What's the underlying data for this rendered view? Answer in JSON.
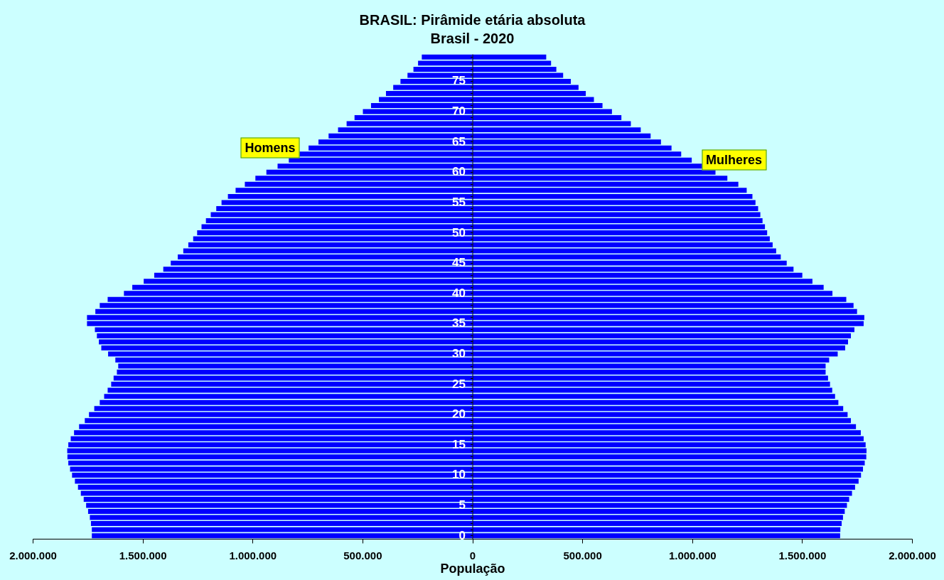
{
  "chart_data": {
    "type": "bar",
    "orientation": "horizontal",
    "stacked": true,
    "title": "BRASIL: Pirâmide etária absoluta",
    "subtitle": "Brasil - 2020",
    "xlabel": "População",
    "legend": false,
    "grid": false,
    "categories": [
      null,
      null,
      null,
      null,
      "75",
      null,
      null,
      null,
      null,
      "70",
      null,
      null,
      null,
      null,
      "65",
      null,
      null,
      null,
      null,
      "60",
      null,
      null,
      null,
      null,
      "55",
      null,
      null,
      null,
      null,
      "50",
      null,
      null,
      null,
      null,
      "45",
      null,
      null,
      null,
      null,
      "40",
      null,
      null,
      null,
      null,
      "35",
      null,
      null,
      null,
      null,
      "30",
      null,
      null,
      null,
      null,
      "25",
      null,
      null,
      null,
      null,
      "20",
      null,
      null,
      null,
      null,
      "15",
      null,
      null,
      null,
      null,
      "10",
      null,
      null,
      null,
      null,
      "5",
      null,
      null,
      null,
      null,
      "0"
    ],
    "xlim": [
      -2000000,
      2000000
    ],
    "xticks": [
      {
        "value": -2000000,
        "label": "2.000.000"
      },
      {
        "value": -1500000,
        "label": "1.500.000"
      },
      {
        "value": -1000000,
        "label": "1.000.000"
      },
      {
        "value": -500000,
        "label": "500.000"
      },
      0,
      {
        "value": 500000,
        "label": "500.000"
      },
      {
        "value": 1000000,
        "label": "1.000.000"
      },
      {
        "value": 1500000,
        "label": "1.500.000"
      },
      {
        "value": 2000000,
        "label": "2.000.000"
      }
    ],
    "series": [
      {
        "name": "Homens",
        "color": "#0000ff",
        "values": [
          -230000,
          -247000,
          -268000,
          -295000,
          -327000,
          -360000,
          -393000,
          -425000,
          -461000,
          -498000,
          -536000,
          -572000,
          -611000,
          -654000,
          -700000,
          -745000,
          -790000,
          -835000,
          -886000,
          -937000,
          -987000,
          -1035000,
          -1077000,
          -1112000,
          -1141000,
          -1165000,
          -1190000,
          -1212000,
          -1232000,
          -1252000,
          -1270000,
          -1292000,
          -1315000,
          -1340000,
          -1372000,
          -1406000,
          -1447000,
          -1495000,
          -1547000,
          -1585000,
          -1659000,
          -1695000,
          -1715000,
          -1753000,
          -1753000,
          -1717000,
          -1708000,
          -1699000,
          -1688000,
          -1657000,
          -1624000,
          -1611000,
          -1617000,
          -1632000,
          -1643000,
          -1659000,
          -1675000,
          -1695000,
          -1720000,
          -1744000,
          -1763000,
          -1789000,
          -1812000,
          -1827000,
          -1838000,
          -1843000,
          -1842000,
          -1838000,
          -1830000,
          -1821000,
          -1808000,
          -1794000,
          -1781000,
          -1768000,
          -1757000,
          -1748000,
          -1740000,
          -1735000,
          -1731000,
          -1731000
        ]
      },
      {
        "name": "Mulheres",
        "color": "#0000ff",
        "values": [
          336000,
          358000,
          382000,
          413000,
          448000,
          483000,
          516000,
          553000,
          592000,
          635000,
          678000,
          721000,
          766000,
          811000,
          858000,
          906000,
          950000,
          998000,
          1050000,
          1106000,
          1160000,
          1210000,
          1248000,
          1274000,
          1288000,
          1300000,
          1310000,
          1320000,
          1331000,
          1341000,
          1353000,
          1366000,
          1382000,
          1403000,
          1430000,
          1461000,
          1501000,
          1547000,
          1598000,
          1638000,
          1701000,
          1734000,
          1750000,
          1783000,
          1780000,
          1738000,
          1722000,
          1709000,
          1696000,
          1662000,
          1623000,
          1607000,
          1607000,
          1618000,
          1627000,
          1637000,
          1650000,
          1665000,
          1687000,
          1707000,
          1722000,
          1745000,
          1767000,
          1780000,
          1789000,
          1793000,
          1792000,
          1785000,
          1777000,
          1768000,
          1757000,
          1741000,
          1727000,
          1714000,
          1704000,
          1694000,
          1686000,
          1680000,
          1674000,
          1673000
        ]
      }
    ]
  }
}
